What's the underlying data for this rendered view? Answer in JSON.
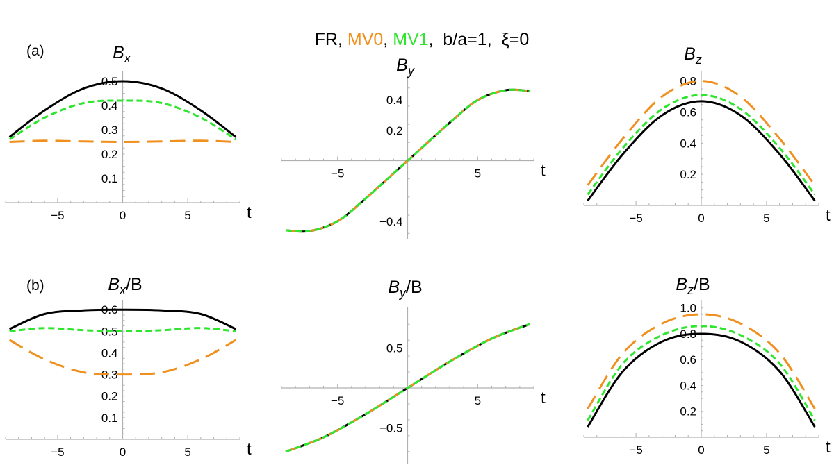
{
  "header": {
    "parts": [
      {
        "text": "FR, ",
        "color": "#000000"
      },
      {
        "text": "MV0",
        "color": "#f0901e"
      },
      {
        "text": ", ",
        "color": "#000000"
      },
      {
        "text": "MV1",
        "color": "#2ee62e"
      },
      {
        "text": ",  b/a=1,  ξ=0",
        "color": "#000000"
      }
    ]
  },
  "series_styles": {
    "FR": {
      "color": "#000000"
    },
    "MV0": {
      "color": "#f0901e"
    },
    "MV1": {
      "color": "#2ee62e"
    }
  },
  "chart_data": [
    {
      "type": "line",
      "row_label": "(a)",
      "title_main": "B",
      "title_sub": "x",
      "title_suffix": "",
      "xlabel": "t",
      "xlim": [
        -9,
        9
      ],
      "ylim": [
        0,
        0.52
      ],
      "xticks": [
        "−5",
        "0",
        "5"
      ],
      "xtick_values": [
        -5,
        0,
        5
      ],
      "yticks": [
        "0.1",
        "0.2",
        "0.3",
        "0.4",
        "0.5"
      ],
      "ytick_values": [
        0.1,
        0.2,
        0.3,
        0.4,
        0.5
      ],
      "x": [
        -8.7,
        -6,
        -3,
        0,
        3,
        6,
        8.7
      ],
      "series": [
        {
          "name": "FR",
          "values": [
            0.27,
            0.38,
            0.47,
            0.5,
            0.47,
            0.38,
            0.27
          ]
        },
        {
          "name": "MV1",
          "values": [
            0.26,
            0.35,
            0.41,
            0.42,
            0.41,
            0.35,
            0.26
          ]
        },
        {
          "name": "MV0",
          "values": [
            0.25,
            0.255,
            0.252,
            0.25,
            0.252,
            0.255,
            0.25
          ]
        }
      ]
    },
    {
      "type": "line",
      "row_label": "",
      "title_main": "B",
      "title_sub": "y",
      "title_suffix": "",
      "xlabel": "t",
      "xlim": [
        -9,
        9
      ],
      "ylim": [
        -0.52,
        0.52
      ],
      "xticks": [
        "−5",
        "5"
      ],
      "xtick_values": [
        -5,
        5
      ],
      "yticks": [
        "−0.4",
        "0.2",
        "0.4"
      ],
      "ytick_values": [
        -0.4,
        0.2,
        0.4
      ],
      "x": [
        -8.7,
        -7,
        -5,
        -3,
        0,
        3,
        5,
        7,
        8.7
      ],
      "series": [
        {
          "name": "FR",
          "values": [
            -0.46,
            -0.465,
            -0.4,
            -0.25,
            0,
            0.25,
            0.4,
            0.465,
            0.46
          ]
        },
        {
          "name": "MV0",
          "values": [
            -0.46,
            -0.465,
            -0.4,
            -0.25,
            0,
            0.25,
            0.4,
            0.465,
            0.46
          ]
        },
        {
          "name": "MV1",
          "values": [
            -0.46,
            -0.465,
            -0.4,
            -0.25,
            0,
            0.25,
            0.4,
            0.465,
            0.46
          ]
        }
      ]
    },
    {
      "type": "line",
      "row_label": "",
      "title_main": "B",
      "title_sub": "z",
      "title_suffix": "",
      "xlabel": "t",
      "xlim": [
        -9,
        9
      ],
      "ylim": [
        0,
        0.83
      ],
      "xticks": [
        "−5",
        "0",
        "5"
      ],
      "xtick_values": [
        -5,
        0,
        5
      ],
      "yticks": [
        "0.2",
        "0.4",
        "0.6",
        "0.8"
      ],
      "ytick_values": [
        0.2,
        0.4,
        0.6,
        0.8
      ],
      "x": [
        -8.7,
        -6,
        -3,
        0,
        3,
        6,
        8.7
      ],
      "series": [
        {
          "name": "MV0",
          "values": [
            0.13,
            0.43,
            0.7,
            0.8,
            0.7,
            0.43,
            0.13
          ]
        },
        {
          "name": "MV1",
          "values": [
            0.07,
            0.37,
            0.62,
            0.71,
            0.62,
            0.37,
            0.07
          ]
        },
        {
          "name": "FR",
          "values": [
            0.03,
            0.33,
            0.58,
            0.67,
            0.58,
            0.33,
            0.03
          ]
        }
      ]
    },
    {
      "type": "line",
      "row_label": "(b)",
      "title_main": "B",
      "title_sub": "x",
      "title_suffix": "/B",
      "xlabel": "t",
      "xlim": [
        -9,
        9
      ],
      "ylim": [
        0,
        0.62
      ],
      "xticks": [
        "−5",
        "0",
        "5"
      ],
      "xtick_values": [
        -5,
        0,
        5
      ],
      "yticks": [
        "0.1",
        "0.2",
        "0.3",
        "0.4",
        "0.5",
        "0.6"
      ],
      "ytick_values": [
        0.1,
        0.2,
        0.3,
        0.4,
        0.5,
        0.6
      ],
      "x": [
        -8.7,
        -6,
        -3,
        0,
        3,
        6,
        8.7
      ],
      "series": [
        {
          "name": "FR",
          "values": [
            0.51,
            0.58,
            0.597,
            0.6,
            0.597,
            0.58,
            0.51
          ]
        },
        {
          "name": "MV1",
          "values": [
            0.5,
            0.515,
            0.505,
            0.5,
            0.505,
            0.515,
            0.5
          ]
        },
        {
          "name": "MV0",
          "values": [
            0.46,
            0.37,
            0.31,
            0.3,
            0.31,
            0.37,
            0.46
          ]
        }
      ]
    },
    {
      "type": "line",
      "row_label": "",
      "title_main": "B",
      "title_sub": "y",
      "title_suffix": "/B",
      "xlabel": "t",
      "xlim": [
        -9,
        9
      ],
      "ylim": [
        -0.95,
        0.95
      ],
      "xticks": [
        "−5",
        "5"
      ],
      "xtick_values": [
        -5,
        5
      ],
      "yticks": [
        "−0.5",
        "0.5"
      ],
      "ytick_values": [
        -0.5,
        0.5
      ],
      "x": [
        -8.7,
        -6,
        -3,
        0,
        3,
        6,
        8.7
      ],
      "series": [
        {
          "name": "FR",
          "values": [
            -0.8,
            -0.62,
            -0.33,
            0,
            0.33,
            0.62,
            0.8
          ]
        },
        {
          "name": "MV0",
          "values": [
            -0.8,
            -0.62,
            -0.33,
            0,
            0.33,
            0.62,
            0.8
          ]
        },
        {
          "name": "MV1",
          "values": [
            -0.8,
            -0.62,
            -0.33,
            0,
            0.33,
            0.62,
            0.8
          ]
        }
      ]
    },
    {
      "type": "line",
      "row_label": "",
      "title_main": "B",
      "title_sub": "z",
      "title_suffix": "/B",
      "xlabel": "t",
      "xlim": [
        -9,
        9
      ],
      "ylim": [
        0,
        1.02
      ],
      "xticks": [
        "−5",
        "0",
        "5"
      ],
      "xtick_values": [
        -5,
        0,
        5
      ],
      "yticks": [
        "0.2",
        "0.4",
        "0.6",
        "0.8",
        "1.0"
      ],
      "ytick_values": [
        0.2,
        0.4,
        0.6,
        0.8,
        1.0
      ],
      "x": [
        -8.7,
        -6,
        -3,
        0,
        3,
        6,
        8.7
      ],
      "series": [
        {
          "name": "MV0",
          "values": [
            0.22,
            0.65,
            0.88,
            0.95,
            0.88,
            0.65,
            0.22
          ]
        },
        {
          "name": "MV1",
          "values": [
            0.13,
            0.57,
            0.79,
            0.86,
            0.79,
            0.57,
            0.13
          ]
        },
        {
          "name": "FR",
          "values": [
            0.08,
            0.51,
            0.74,
            0.8,
            0.74,
            0.51,
            0.08
          ]
        }
      ]
    }
  ]
}
